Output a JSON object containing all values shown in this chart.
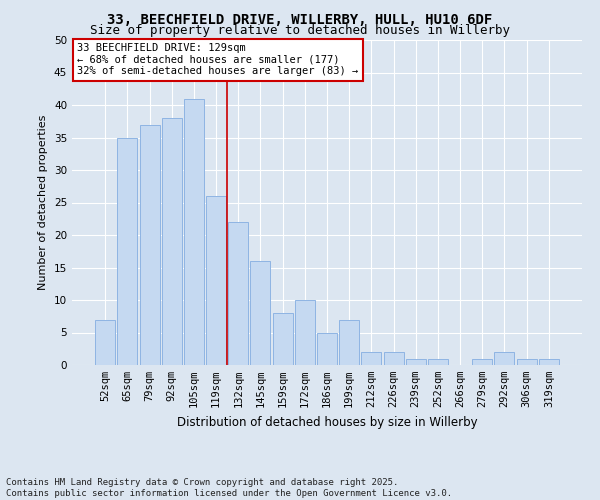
{
  "title": "33, BEECHFIELD DRIVE, WILLERBY, HULL, HU10 6DF",
  "subtitle": "Size of property relative to detached houses in Willerby",
  "xlabel": "Distribution of detached houses by size in Willerby",
  "ylabel": "Number of detached properties",
  "categories": [
    "52sqm",
    "65sqm",
    "79sqm",
    "92sqm",
    "105sqm",
    "119sqm",
    "132sqm",
    "145sqm",
    "159sqm",
    "172sqm",
    "186sqm",
    "199sqm",
    "212sqm",
    "226sqm",
    "239sqm",
    "252sqm",
    "266sqm",
    "279sqm",
    "292sqm",
    "306sqm",
    "319sqm"
  ],
  "values": [
    7,
    35,
    37,
    38,
    41,
    26,
    22,
    16,
    8,
    10,
    5,
    7,
    2,
    2,
    1,
    1,
    0,
    1,
    2,
    1,
    1
  ],
  "bar_color": "#c5d9f1",
  "bar_edge_color": "#8eb4e3",
  "annotation_text": "33 BEECHFIELD DRIVE: 129sqm\n← 68% of detached houses are smaller (177)\n32% of semi-detached houses are larger (83) →",
  "annotation_box_color": "#ffffff",
  "annotation_box_edge_color": "#cc0000",
  "vline_color": "#cc0000",
  "vline_x": 5.5,
  "ylim": [
    0,
    50
  ],
  "yticks": [
    0,
    5,
    10,
    15,
    20,
    25,
    30,
    35,
    40,
    45,
    50
  ],
  "bg_color": "#dce6f1",
  "plot_bg_color": "#dce6f1",
  "footer": "Contains HM Land Registry data © Crown copyright and database right 2025.\nContains public sector information licensed under the Open Government Licence v3.0.",
  "title_fontsize": 10,
  "subtitle_fontsize": 9,
  "xlabel_fontsize": 8.5,
  "ylabel_fontsize": 8,
  "tick_fontsize": 7.5,
  "annotation_fontsize": 7.5,
  "footer_fontsize": 6.5
}
